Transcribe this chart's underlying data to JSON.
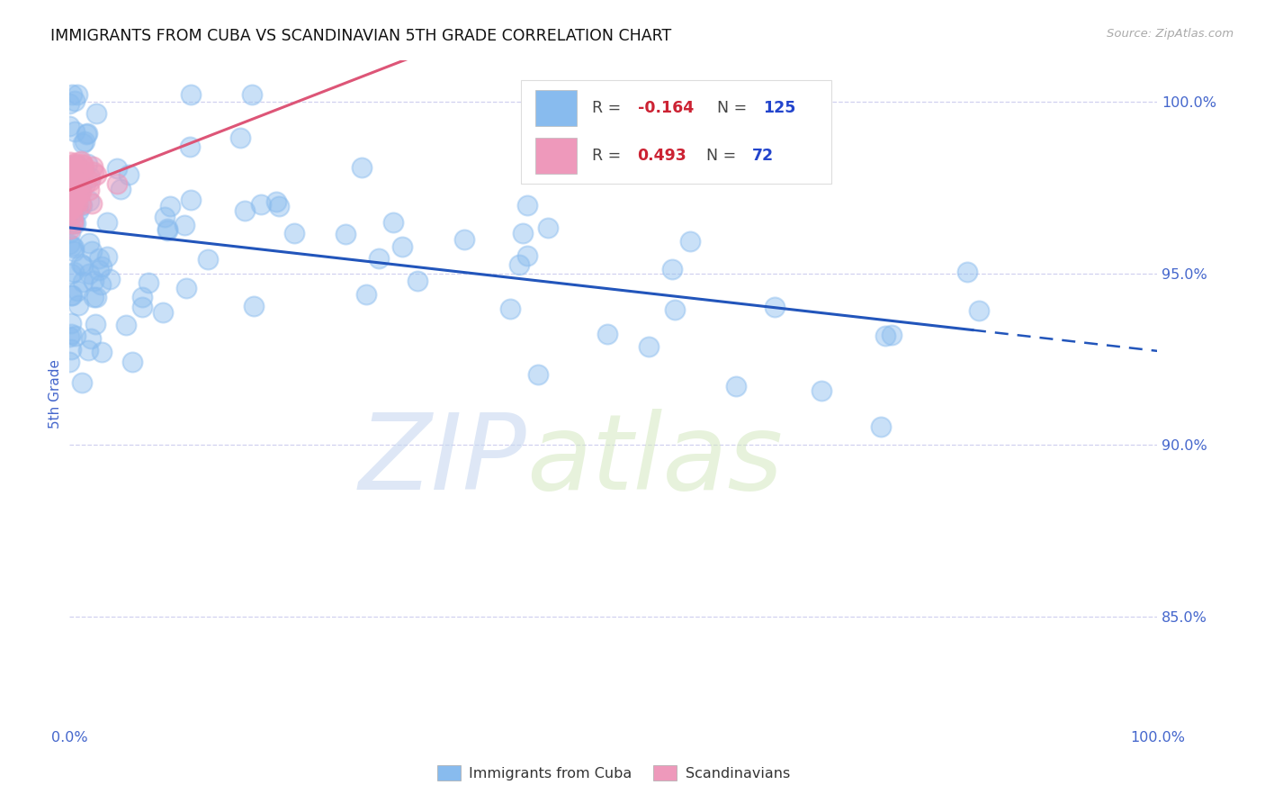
{
  "title": "IMMIGRANTS FROM CUBA VS SCANDINAVIAN 5TH GRADE CORRELATION CHART",
  "source_text": "Source: ZipAtlas.com",
  "ylabel": "5th Grade",
  "watermark_zip": "ZIP",
  "watermark_atlas": "atlas",
  "r_cuba": -0.164,
  "n_cuba": 125,
  "r_scand": 0.493,
  "n_scand": 72,
  "xlim": [
    0.0,
    1.0
  ],
  "ylim": [
    0.818,
    1.012
  ],
  "yticks": [
    0.85,
    0.9,
    0.95,
    1.0
  ],
  "ytick_labels": [
    "85.0%",
    "90.0%",
    "95.0%",
    "100.0%"
  ],
  "xtick_labels_left": "0.0%",
  "xtick_labels_right": "100.0%",
  "blue_scatter_color": "#88bbee",
  "pink_scatter_color": "#ee99bb",
  "blue_line_color": "#2255bb",
  "pink_line_color": "#dd5577",
  "axis_tick_color": "#4466cc",
  "grid_color": "#ccccee",
  "title_color": "#111111",
  "source_color": "#aaaaaa",
  "background_color": "#ffffff",
  "legend_border_color": "#dddddd",
  "legend_r_blue_color": "#cc2233",
  "legend_n_color": "#2244cc",
  "watermark_color": "#c8d8f0"
}
